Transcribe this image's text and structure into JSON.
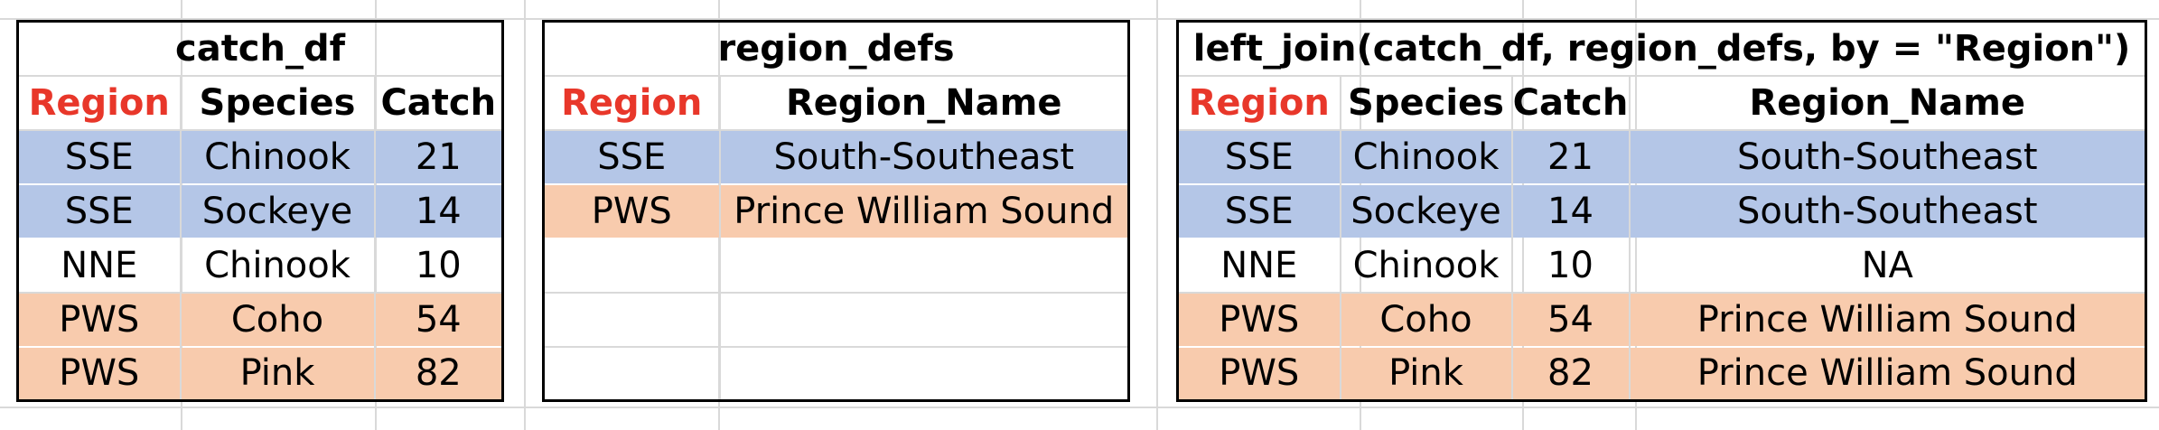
{
  "colors": {
    "key_header": "#e8372a",
    "sse_fill": "#b4c6e7",
    "pws_fill": "#f8cbad",
    "grid": "#d9d9d9",
    "border": "#000000"
  },
  "catch_df": {
    "title": "catch_df",
    "headers": [
      "Region",
      "Species",
      "Catch"
    ],
    "rows": [
      [
        "SSE",
        "Chinook",
        "21"
      ],
      [
        "SSE",
        "Sockeye",
        "14"
      ],
      [
        "NNE",
        "Chinook",
        "10"
      ],
      [
        "PWS",
        "Coho",
        "54"
      ],
      [
        "PWS",
        "Pink",
        "82"
      ]
    ]
  },
  "region_defs": {
    "title": "region_defs",
    "headers": [
      "Region",
      "Region_Name"
    ],
    "rows": [
      [
        "SSE",
        "South-Southeast"
      ],
      [
        "PWS",
        "Prince William Sound"
      ],
      [
        "",
        ""
      ],
      [
        "",
        ""
      ],
      [
        "",
        ""
      ]
    ]
  },
  "joined": {
    "title": "left_join(catch_df, region_defs, by = \"Region\")",
    "headers": [
      "Region",
      "Species",
      "Catch",
      "Region_Name"
    ],
    "rows": [
      [
        "SSE",
        "Chinook",
        "21",
        "South-Southeast"
      ],
      [
        "SSE",
        "Sockeye",
        "14",
        "South-Southeast"
      ],
      [
        "NNE",
        "Chinook",
        "10",
        "NA"
      ],
      [
        "PWS",
        "Coho",
        "54",
        "Prince William Sound"
      ],
      [
        "PWS",
        "Pink",
        "82",
        "Prince William Sound"
      ]
    ]
  }
}
